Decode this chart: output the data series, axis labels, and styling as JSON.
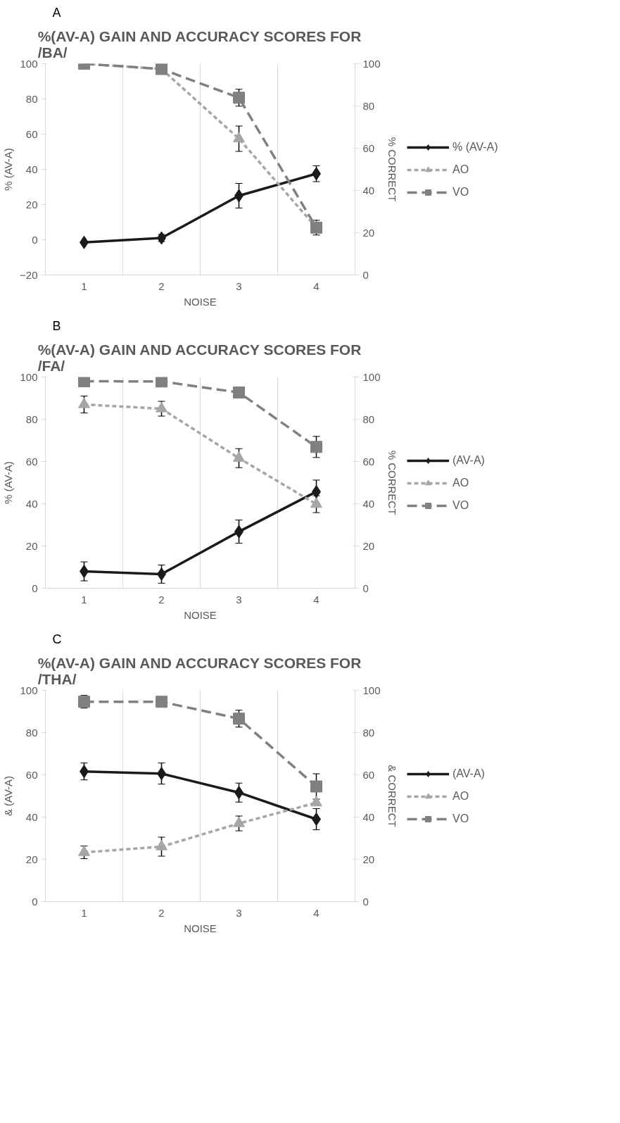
{
  "chart_data": [
    {
      "type": "line",
      "title": "%(AV-A) GAIN AND ACCURACY SCORES FOR /BA/",
      "annotations": [
        "A"
      ],
      "xlabel": "NOISE",
      "ylabel": "% (AV-A)",
      "y2label": "% CORRECT",
      "categories": [
        "1",
        "2",
        "3",
        "4"
      ],
      "ylim": [
        -20,
        100
      ],
      "yticks": [
        -20,
        0,
        20,
        40,
        60,
        80,
        100
      ],
      "y2lim": [
        0,
        100
      ],
      "y2ticks": [
        0,
        20,
        40,
        60,
        80,
        100
      ],
      "grid": "x",
      "legend": "right",
      "series": [
        {
          "name": "% (AV-A)",
          "color": "#1a1a1a",
          "marker": "diamond",
          "line_style": "solid",
          "values": [
            -1.5,
            1,
            25,
            37.5
          ],
          "errors": [
            null,
            2,
            7,
            4.5
          ]
        },
        {
          "name": "AO",
          "color": "#a6a6a6",
          "marker": "triangle",
          "line_style": "dashed",
          "axis": "y2",
          "values": [
            100,
            97.5,
            64.5,
            22.4
          ],
          "errors": [
            null,
            null,
            6,
            null
          ]
        },
        {
          "name": "VO",
          "color": "#808080",
          "marker": "square",
          "line_style": "dashed",
          "axis": "y2",
          "values": [
            100,
            97.5,
            83.9,
            22.4
          ],
          "errors": [
            null,
            null,
            4,
            3.5
          ]
        }
      ]
    },
    {
      "type": "line",
      "title": "%(AV-A) GAIN AND ACCURACY SCORES FOR /FA/",
      "annotations": [
        "B"
      ],
      "xlabel": "NOISE",
      "ylabel": "% (AV-A)",
      "y2label": "% CORRECT",
      "categories": [
        "1",
        "2",
        "3",
        "4"
      ],
      "ylim": [
        0,
        100
      ],
      "yticks": [
        0,
        20,
        40,
        60,
        80,
        100
      ],
      "y2lim": [
        0,
        100
      ],
      "y2ticks": [
        0,
        20,
        40,
        60,
        80,
        100
      ],
      "grid": "x",
      "legend": "right",
      "series": [
        {
          "name": "(AV-A)",
          "color": "#1a1a1a",
          "marker": "diamond",
          "line_style": "solid",
          "values": [
            8,
            6.7,
            26.8,
            45.7
          ],
          "errors": [
            4.5,
            4.3,
            5.5,
            5.5
          ]
        },
        {
          "name": "AO",
          "color": "#a6a6a6",
          "marker": "triangle",
          "line_style": "dashed",
          "axis": "y2",
          "values": [
            87,
            85,
            61.6,
            39.8
          ],
          "errors": [
            4,
            3.5,
            4.5,
            4
          ]
        },
        {
          "name": "VO",
          "color": "#808080",
          "marker": "square",
          "line_style": "dashed",
          "axis": "y2",
          "values": [
            98,
            97.9,
            92.7,
            66.9
          ],
          "errors": [
            null,
            null,
            2,
            5
          ]
        }
      ]
    },
    {
      "type": "line",
      "title": "%(AV-A) GAIN AND ACCURACY SCORES FOR /THA/",
      "annotations": [
        "C"
      ],
      "xlabel": "NOISE",
      "ylabel": "& (AV-A)",
      "y2label": "& CORRECT",
      "categories": [
        "1",
        "2",
        "3",
        "4"
      ],
      "ylim": [
        0,
        100
      ],
      "yticks": [
        0,
        20,
        40,
        60,
        80,
        100
      ],
      "y2lim": [
        0,
        100
      ],
      "y2ticks": [
        0,
        20,
        40,
        60,
        80,
        100
      ],
      "grid": "x",
      "legend": "right",
      "series": [
        {
          "name": "(AV-A)",
          "color": "#1a1a1a",
          "marker": "diamond",
          "line_style": "solid",
          "values": [
            61.6,
            60.6,
            51.6,
            39
          ],
          "errors": [
            4,
            5,
            4.5,
            5
          ]
        },
        {
          "name": "AO",
          "color": "#a6a6a6",
          "marker": "triangle",
          "line_style": "dashed",
          "axis": "y2",
          "values": [
            23.3,
            26,
            37,
            46.8
          ],
          "errors": [
            3,
            4.5,
            3.5,
            null
          ]
        },
        {
          "name": "VO",
          "color": "#808080",
          "marker": "square",
          "line_style": "dashed",
          "axis": "y2",
          "values": [
            94.6,
            94.6,
            86.6,
            54.5
          ],
          "errors": [
            3,
            null,
            4,
            6
          ]
        }
      ]
    }
  ]
}
